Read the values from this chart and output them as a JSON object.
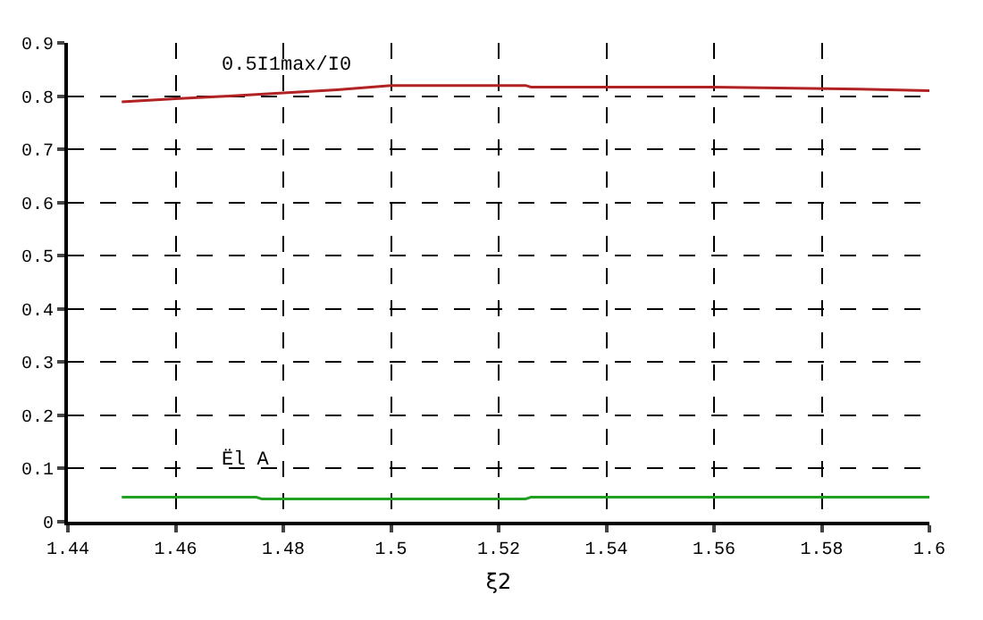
{
  "chart_data": {
    "type": "line",
    "xlabel": "ξ2",
    "series": [
      {
        "name": "0.5I1max/I0",
        "color": "#b22222",
        "x": [
          1.45,
          1.46,
          1.47,
          1.48,
          1.49,
          1.5,
          1.525,
          1.526,
          1.56,
          1.587,
          1.6
        ],
        "values": [
          0.789,
          0.795,
          0.8,
          0.806,
          0.812,
          0.82,
          0.82,
          0.817,
          0.817,
          0.813,
          0.81
        ]
      },
      {
        "name": "Ël A",
        "color": "#22a022",
        "x": [
          1.45,
          1.475,
          1.476,
          1.525,
          1.526,
          1.6
        ],
        "values": [
          0.046,
          0.046,
          0.043,
          0.043,
          0.046,
          0.046
        ]
      }
    ],
    "xlim": [
      1.44,
      1.6
    ],
    "xticks": [
      1.44,
      1.46,
      1.48,
      1.5,
      1.52,
      1.54,
      1.56,
      1.58,
      1.6
    ],
    "ylim": [
      0,
      0.9
    ],
    "yticks": [
      0,
      0.1,
      0.2,
      0.3,
      0.4,
      0.5,
      0.6,
      0.7,
      0.8,
      0.9
    ],
    "grid": true,
    "legend": false,
    "marker": "none",
    "line_style": "solid"
  }
}
